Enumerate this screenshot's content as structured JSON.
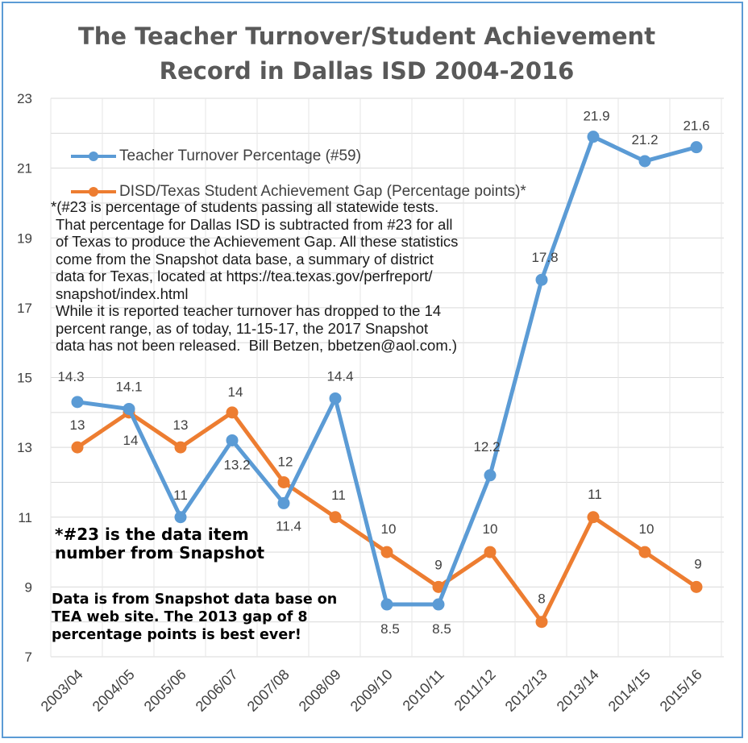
{
  "chart_data": {
    "type": "line",
    "title": "The Teacher Turnover/Student Achievement Record in Dallas ISD 2004-2016",
    "title_lines": [
      "The Teacher Turnover/Student Achievement",
      "Record in Dallas ISD 2004-2016"
    ],
    "categories": [
      "2003/04",
      "2004/05",
      "2005/06",
      "2006/07",
      "2007/08",
      "2008/09",
      "2009/10",
      "2010/11",
      "2011/12",
      "2012/13",
      "2013/14",
      "2014/15",
      "2015/16"
    ],
    "ylim": [
      7,
      23
    ],
    "yticks": [
      7,
      9,
      11,
      13,
      15,
      17,
      19,
      21,
      23
    ],
    "grid": true,
    "legend_position": "top-left",
    "series": [
      {
        "name": "Teacher Turnover Percentage (#59)",
        "color": "#5b9bd5",
        "values": [
          14.3,
          14.1,
          11,
          13.2,
          11.4,
          14.4,
          8.5,
          8.5,
          12.2,
          17.8,
          21.9,
          21.2,
          21.6
        ],
        "labels": [
          "14.3",
          "14.1",
          "11",
          "13.2",
          "11.4",
          "14.4",
          "8.5",
          "8.5",
          "12.2",
          "17.8",
          "21.9",
          "21.2",
          "21.6"
        ]
      },
      {
        "name": "DISD/Texas Student Achievement Gap (Percentage points)*",
        "color": "#ed7d31",
        "values": [
          13,
          14,
          13,
          14,
          12,
          11,
          10,
          9,
          10,
          8,
          11,
          10,
          9
        ],
        "labels": [
          "13",
          "14",
          "13",
          "14",
          "12",
          "11",
          "10",
          "9",
          "10",
          "8",
          "11",
          "10",
          "9"
        ]
      }
    ]
  },
  "annotations": {
    "note_lines": [
      "*(#23 is percentage of students passing all statewide tests.",
      "That percentage for Dallas ISD is subtracted from #23 for all",
      "of Texas to produce the Achievement Gap. All these statistics",
      "come from the Snapshot data base, a summary of district",
      "data for Texas, located at https://tea.texas.gov/perfreport/",
      "snapshot/index.html",
      "While it is reported teacher turnover has dropped to the 14",
      "percent range, as of today, 11-15-17, the 2017 Snapshot",
      "data has not been released.  Bill Betzen, bbetzen@aol.com.)"
    ],
    "footnote_lines": [
      "*#23 is the data item",
      "number from Snapshot"
    ],
    "source_lines": [
      "Data is from Snapshot data base on",
      "TEA web site. The 2013 gap of 8",
      "percentage points is best ever!"
    ]
  }
}
